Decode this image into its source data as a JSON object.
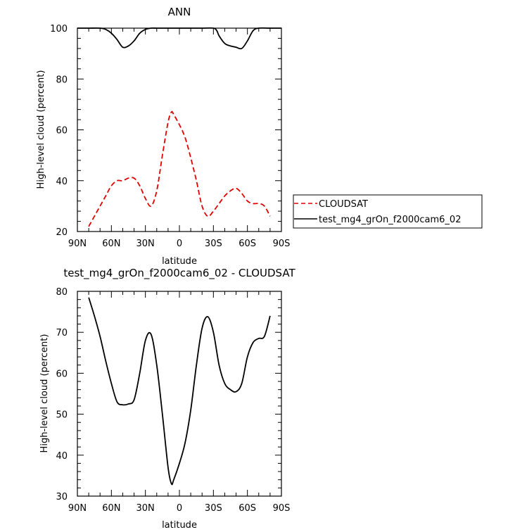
{
  "chart_data": [
    {
      "type": "line",
      "title": "ANN",
      "xlabel": "latitude",
      "ylabel": "High-level cloud (percent)",
      "xlim": [
        90,
        -90
      ],
      "ylim": [
        20,
        100
      ],
      "xticks": [
        90,
        60,
        30,
        0,
        -30,
        -60,
        -90
      ],
      "xtick_labels": [
        "90N",
        "60N",
        "30N",
        "0",
        "30S",
        "60S",
        "90S"
      ],
      "yticks": [
        20,
        40,
        60,
        80,
        100
      ],
      "ytick_labels": [
        "20",
        "40",
        "60",
        "80",
        "100"
      ],
      "legend_position": "right",
      "series": [
        {
          "name": "CLOUDSAT",
          "color": "#e00000",
          "dash": "dashed",
          "x": [
            80,
            75,
            70,
            65,
            60,
            55,
            50,
            45,
            40,
            35,
            30,
            25,
            20,
            15,
            10,
            7,
            5,
            0,
            -5,
            -10,
            -15,
            -20,
            -25,
            -30,
            -35,
            -40,
            -45,
            -50,
            -55,
            -60,
            -65,
            -70,
            -75,
            -80
          ],
          "y": [
            22,
            26,
            30,
            34,
            38,
            40,
            40,
            41,
            41,
            38,
            33,
            30,
            36,
            50,
            63,
            67,
            66,
            62,
            57,
            49,
            40,
            30,
            26,
            28,
            31,
            34,
            36,
            37,
            35,
            32,
            31,
            31,
            30,
            26
          ]
        },
        {
          "name": "test_mg4_grOn_f2000cam6_02",
          "color": "#000000",
          "dash": "solid",
          "x": [
            90,
            80,
            70,
            65,
            60,
            55,
            50,
            45,
            40,
            35,
            30,
            25,
            20,
            10,
            0,
            -10,
            -20,
            -30,
            -33,
            -35,
            -40,
            -45,
            -50,
            -55,
            -60,
            -65,
            -70,
            -80,
            -90
          ],
          "y": [
            100,
            100,
            100,
            99.5,
            98,
            95.5,
            92.5,
            93,
            95,
            98,
            99.5,
            100,
            100,
            100,
            100,
            100,
            100,
            100,
            99,
            97,
            94,
            93,
            92.5,
            92,
            95,
            99,
            100,
            100,
            100
          ]
        }
      ]
    },
    {
      "type": "line",
      "title": "test_mg4_grOn_f2000cam6_02 - CLOUDSAT",
      "xlabel": "latitude",
      "ylabel": "High-level cloud (percent)",
      "xlim": [
        90,
        -90
      ],
      "ylim": [
        30,
        80
      ],
      "xticks": [
        90,
        60,
        30,
        0,
        -30,
        -60,
        -90
      ],
      "xtick_labels": [
        "90N",
        "60N",
        "30N",
        "0",
        "30S",
        "60S",
        "90S"
      ],
      "yticks": [
        30,
        40,
        50,
        60,
        70,
        80
      ],
      "ytick_labels": [
        "30",
        "40",
        "50",
        "60",
        "70",
        "80"
      ],
      "series": [
        {
          "color": "#000000",
          "dash": "solid",
          "x": [
            80,
            75,
            70,
            65,
            60,
            55,
            50,
            45,
            40,
            35,
            30,
            25,
            20,
            15,
            10,
            7,
            5,
            0,
            -5,
            -10,
            -15,
            -20,
            -25,
            -30,
            -35,
            -40,
            -45,
            -50,
            -55,
            -60,
            -65,
            -70,
            -75,
            -80
          ],
          "y": [
            78.5,
            74,
            69,
            63,
            57.5,
            53,
            52.3,
            52.5,
            53.5,
            60,
            68,
            69.5,
            62,
            50,
            37,
            33,
            34,
            38,
            43,
            51,
            62,
            71,
            73.8,
            70,
            62,
            57.5,
            56,
            55.5,
            57.5,
            64,
            67.5,
            68.5,
            69,
            74
          ]
        }
      ]
    }
  ]
}
